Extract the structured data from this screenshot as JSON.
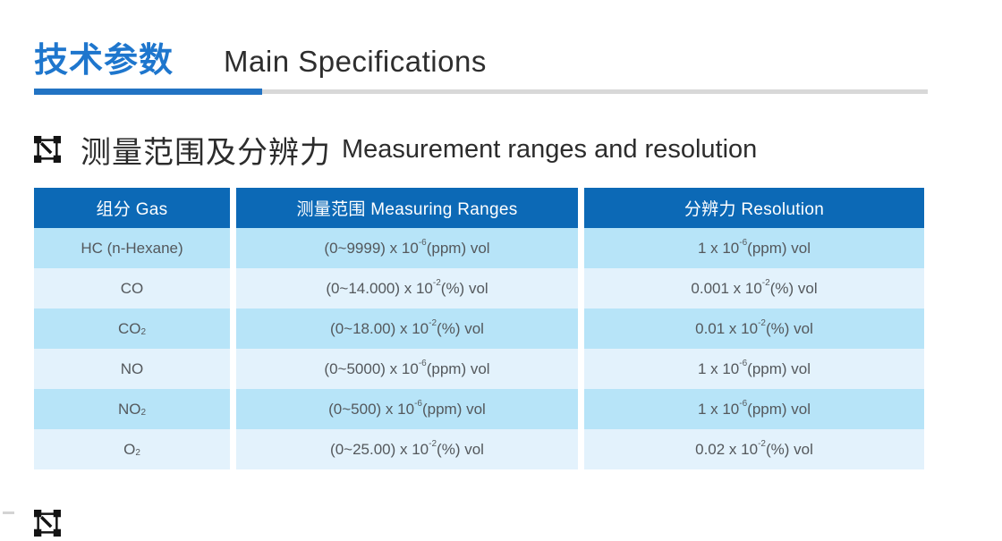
{
  "colors": {
    "accent_blue": "#1e76cd",
    "divider_blue": "#2273c3",
    "divider_gray": "#d8d8d8",
    "table_header_bg": "#0c69b6",
    "row_shade_a": "#b7e4f8",
    "row_shade_b": "#e3f2fc",
    "cell_text": "#54585c"
  },
  "page": {
    "title_zh": "技术参数",
    "title_en": "Main Specifications"
  },
  "section": {
    "icon": "vector-selection-icon",
    "title_zh": "测量范围及分辨力",
    "title_en": "Measurement ranges and resolution"
  },
  "table": {
    "columns": [
      "组分 Gas",
      "测量范围 Measuring Ranges",
      "分辨力 Resolution"
    ],
    "rows": [
      {
        "gas": "HC (n-Hexane)",
        "range": "(0~9999) x 10^{-6}(ppm) vol",
        "resolution": "1 x 10^{-6}(ppm) vol"
      },
      {
        "gas": "CO",
        "range": "(0~14.000) x 10^{-2}(%) vol",
        "resolution": "0.001 x 10^{-2}(%) vol"
      },
      {
        "gas": "CO_{2}",
        "range": "(0~18.00) x 10^{-2}(%) vol",
        "resolution": "0.01 x 10^{-2}(%) vol"
      },
      {
        "gas": "NO",
        "range": "(0~5000) x 10^{-6}(ppm) vol",
        "resolution": "1 x 10^{-6}(ppm) vol"
      },
      {
        "gas": "NO_{2}",
        "range": "(0~500) x 10^{-6}(ppm) vol",
        "resolution": "1 x 10^{-6}(ppm) vol"
      },
      {
        "gas": "O_{2}",
        "range": "(0~25.00) x 10^{-2}(%) vol",
        "resolution": "0.02 x 10^{-2}(%) vol"
      }
    ]
  }
}
